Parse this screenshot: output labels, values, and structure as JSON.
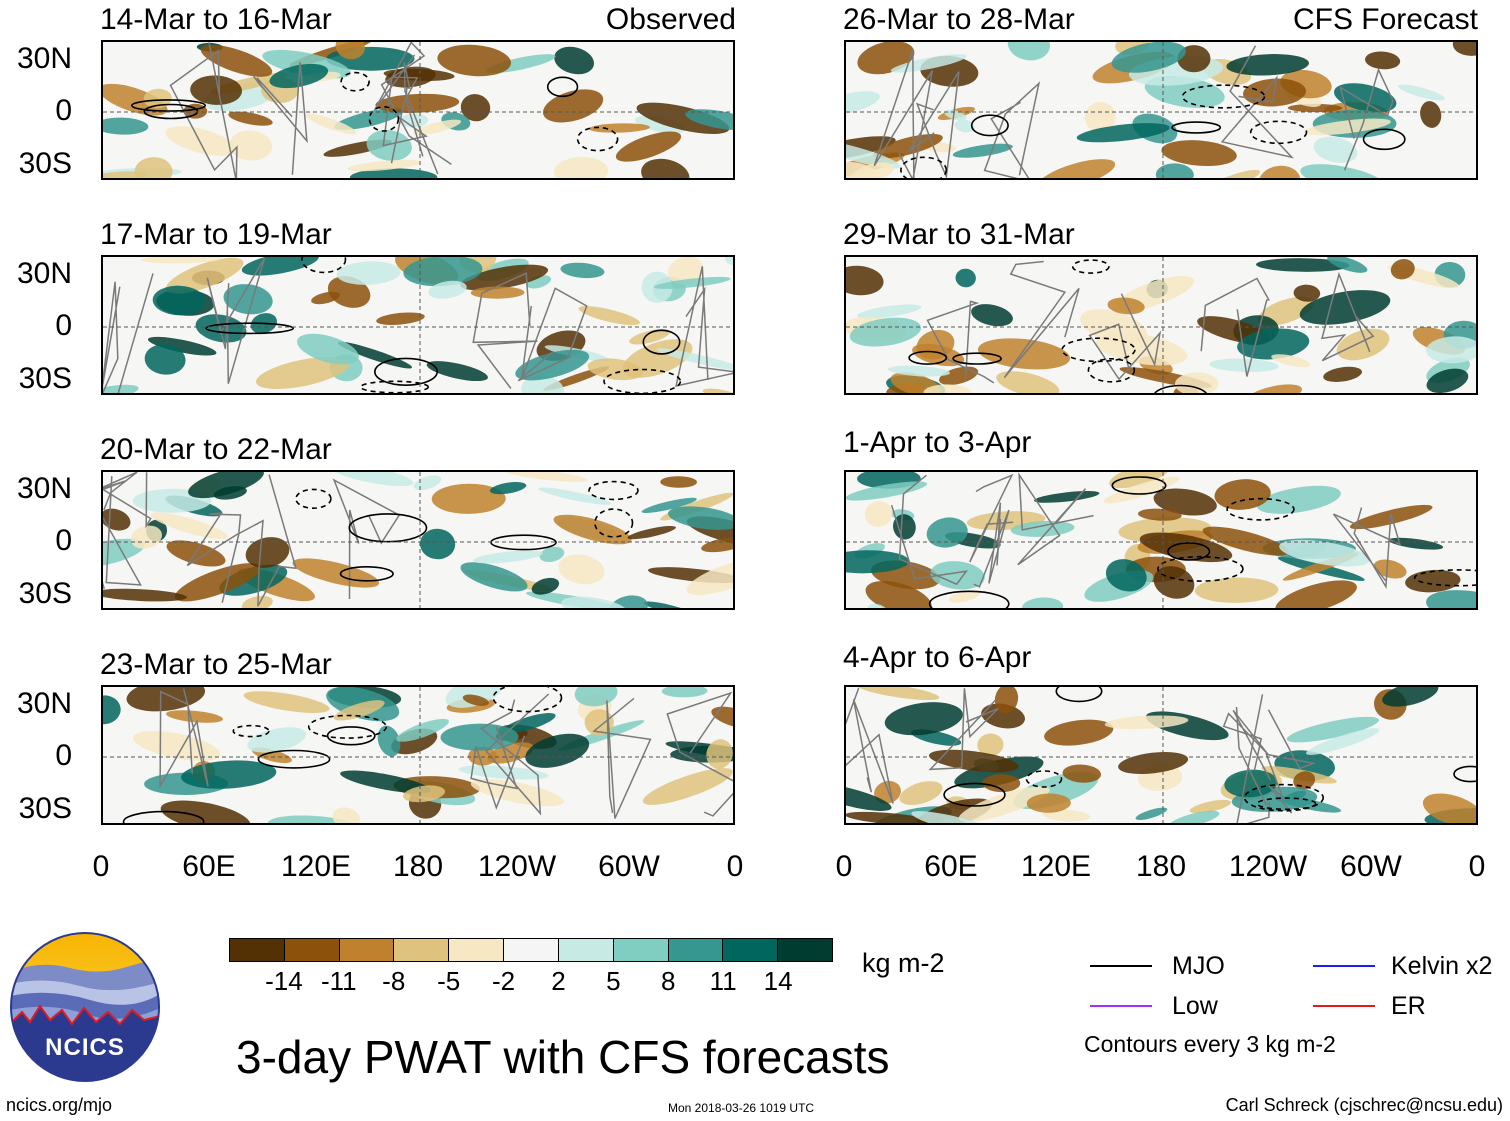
{
  "panels": [
    {
      "title": "14-Mar to 16-Mar",
      "tag": "Observed"
    },
    {
      "title": "17-Mar to 19-Mar",
      "tag": ""
    },
    {
      "title": "20-Mar to 22-Mar",
      "tag": ""
    },
    {
      "title": "23-Mar to 25-Mar",
      "tag": ""
    },
    {
      "title": "26-Mar to 28-Mar",
      "tag": "CFS Forecast"
    },
    {
      "title": "29-Mar to 31-Mar",
      "tag": ""
    },
    {
      "title": "1-Apr to 3-Apr",
      "tag": ""
    },
    {
      "title": "4-Apr to 6-Apr",
      "tag": ""
    }
  ],
  "lat_labels": [
    "30N",
    "0",
    "30S"
  ],
  "lon_labels": [
    "0",
    "60E",
    "120E",
    "180",
    "120W",
    "60W",
    "0"
  ],
  "colorbar": {
    "colors": [
      "#543005",
      "#8c510a",
      "#bf812d",
      "#dfc27d",
      "#f6e8c3",
      "#f5f5f5",
      "#c7eae5",
      "#80cdc1",
      "#35978f",
      "#01665e",
      "#003c30"
    ],
    "ticks": [
      "-14",
      "-11",
      "-8",
      "-5",
      "-2",
      "2",
      "5",
      "8",
      "11",
      "14"
    ],
    "units": "kg m-2"
  },
  "title": "3-day PWAT with CFS forecasts",
  "legend": {
    "items": [
      {
        "label": "MJO",
        "color": "#000000"
      },
      {
        "label": "Kelvin x2",
        "color": "#1a1aff"
      },
      {
        "label": "Low",
        "color": "#9b30ff"
      },
      {
        "label": "ER",
        "color": "#e31a1c"
      }
    ],
    "note": "Contours every 3 kg m-2"
  },
  "logo_text": "NCICS",
  "footer": {
    "left": "ncics.org/mjo",
    "center": "Mon 2018-03-26 1019 UTC",
    "right": "Carl Schreck (cjschrec@ncsu.edu)"
  }
}
